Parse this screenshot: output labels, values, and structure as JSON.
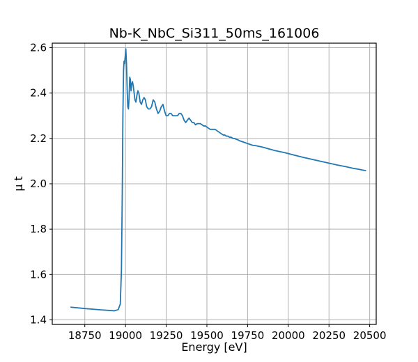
{
  "chart_data": {
    "type": "line",
    "title": "Nb-K_NbC_Si311_50ms_161006",
    "xlabel": "Energy [eV]",
    "ylabel": "μ t",
    "xlim": [
      18550,
      20540
    ],
    "ylim": [
      1.38,
      2.62
    ],
    "x_ticks": [
      18750,
      19000,
      19250,
      19500,
      19750,
      20000,
      20250,
      20500
    ],
    "y_ticks": [
      1.4,
      1.6,
      1.8,
      2.0,
      2.2,
      2.4,
      2.6
    ],
    "x_tick_labels": [
      "18750",
      "19000",
      "19250",
      "19500",
      "19750",
      "20000",
      "20250",
      "20500"
    ],
    "y_tick_labels": [
      "1.4",
      "1.6",
      "1.8",
      "2.0",
      "2.2",
      "2.4",
      "2.6"
    ],
    "grid": true,
    "series": [
      {
        "color": "#1f77b4",
        "x": [
          18665,
          18750,
          18850,
          18930,
          18955,
          18968,
          18975,
          18980,
          18984,
          18988,
          18991,
          18994,
          18998,
          19002,
          19006,
          19010,
          19014,
          19018,
          19022,
          19026,
          19030,
          19034,
          19038,
          19043,
          19048,
          19053,
          19058,
          19064,
          19070,
          19076,
          19082,
          19090,
          19098,
          19106,
          19114,
          19122,
          19130,
          19140,
          19150,
          19160,
          19170,
          19180,
          19190,
          19200,
          19210,
          19220,
          19230,
          19240,
          19250,
          19260,
          19270,
          19280,
          19290,
          19300,
          19310,
          19320,
          19330,
          19340,
          19350,
          19360,
          19370,
          19380,
          19390,
          19400,
          19410,
          19420,
          19430,
          19440,
          19450,
          19460,
          19470,
          19480,
          19490,
          19500,
          19510,
          19520,
          19530,
          19540,
          19550,
          19560,
          19570,
          19580,
          19590,
          19600,
          19610,
          19620,
          19630,
          19640,
          19650,
          19660,
          19670,
          19680,
          19690,
          19700,
          19720,
          19740,
          19760,
          19780,
          19800,
          19820,
          19840,
          19860,
          19880,
          19900,
          19920,
          19940,
          19960,
          19980,
          20000,
          20050,
          20100,
          20150,
          20200,
          20250,
          20300,
          20350,
          20400,
          20440,
          20475
        ],
        "values": [
          1.456,
          1.45,
          1.444,
          1.44,
          1.445,
          1.47,
          1.62,
          1.95,
          2.3,
          2.5,
          2.54,
          2.53,
          2.56,
          2.595,
          2.53,
          2.42,
          2.34,
          2.33,
          2.38,
          2.47,
          2.46,
          2.41,
          2.44,
          2.45,
          2.43,
          2.4,
          2.37,
          2.36,
          2.39,
          2.41,
          2.4,
          2.36,
          2.35,
          2.37,
          2.38,
          2.37,
          2.34,
          2.33,
          2.33,
          2.34,
          2.37,
          2.36,
          2.33,
          2.31,
          2.32,
          2.34,
          2.35,
          2.32,
          2.3,
          2.3,
          2.31,
          2.31,
          2.3,
          2.3,
          2.3,
          2.3,
          2.31,
          2.31,
          2.3,
          2.28,
          2.27,
          2.28,
          2.29,
          2.28,
          2.27,
          2.27,
          2.26,
          2.265,
          2.265,
          2.265,
          2.26,
          2.255,
          2.255,
          2.25,
          2.245,
          2.24,
          2.24,
          2.24,
          2.24,
          2.235,
          2.23,
          2.225,
          2.22,
          2.215,
          2.215,
          2.21,
          2.21,
          2.205,
          2.205,
          2.2,
          2.2,
          2.196,
          2.194,
          2.19,
          2.185,
          2.18,
          2.175,
          2.17,
          2.168,
          2.165,
          2.162,
          2.158,
          2.154,
          2.15,
          2.146,
          2.143,
          2.14,
          2.137,
          2.133,
          2.124,
          2.115,
          2.107,
          2.099,
          2.091,
          2.083,
          2.076,
          2.068,
          2.063,
          2.058
        ]
      }
    ]
  }
}
